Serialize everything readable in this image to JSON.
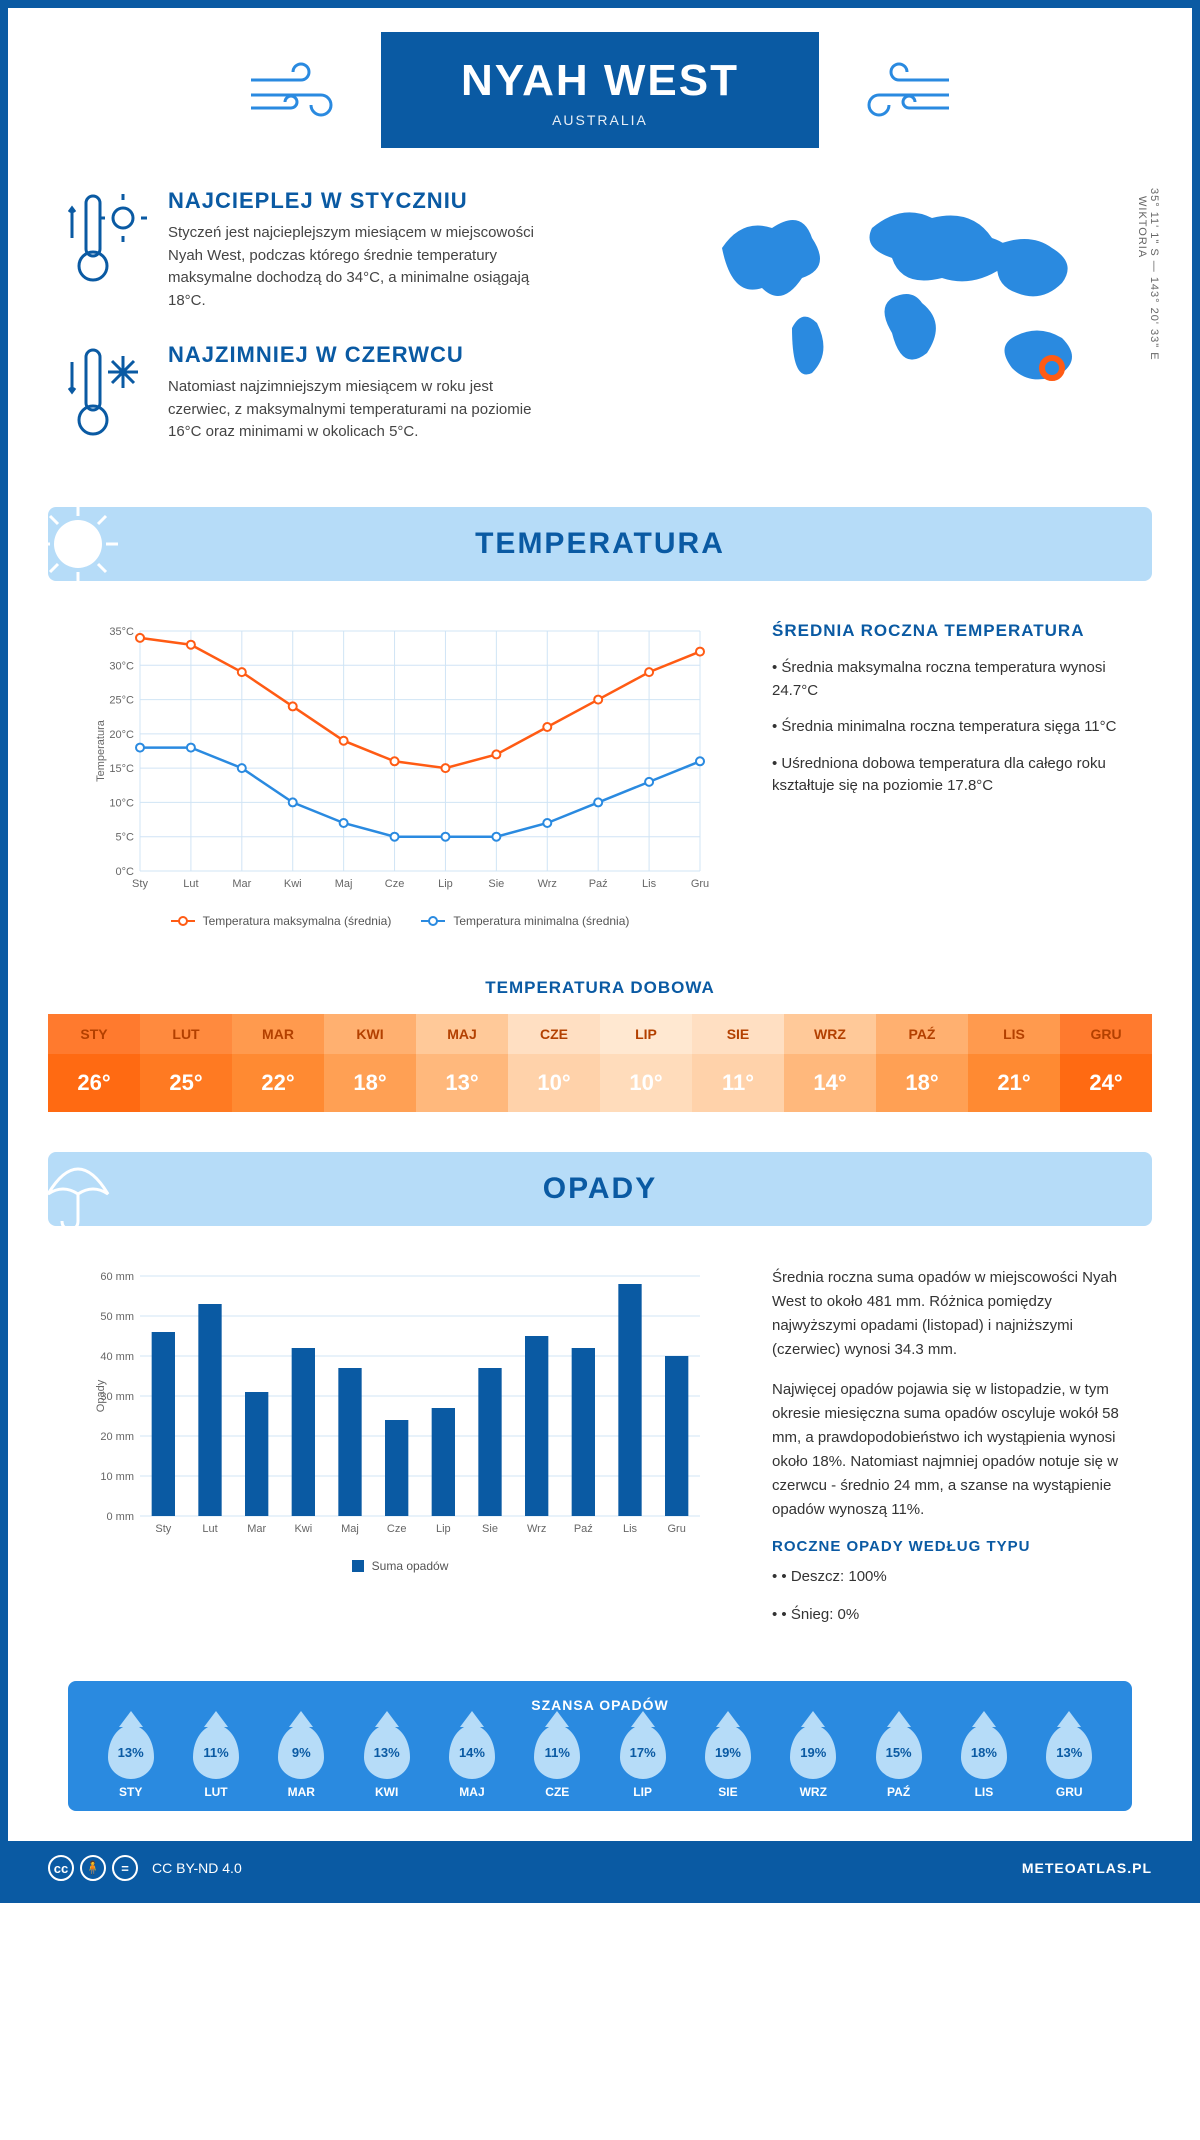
{
  "header": {
    "city": "NYAH WEST",
    "country": "AUSTRALIA"
  },
  "coords": {
    "lat": "35° 11' 1\" S",
    "lon": "143° 20' 33\" E",
    "region": "WIKTORIA"
  },
  "warmest": {
    "title": "NAJCIEPLEJ W STYCZNIU",
    "text": "Styczeń jest najcieplejszym miesiącem w miejscowości Nyah West, podczas którego średnie temperatury maksymalne dochodzą do 34°C, a minimalne osiągają 18°C."
  },
  "coldest": {
    "title": "NAJZIMNIEJ W CZERWCU",
    "text": "Natomiast najzimniejszym miesiącem w roku jest czerwiec, z maksymalnymi temperaturami na poziomie 16°C oraz minimami w okolicach 5°C."
  },
  "temp_section": {
    "title": "TEMPERATURA",
    "chart": {
      "type": "line",
      "months": [
        "Sty",
        "Lut",
        "Mar",
        "Kwi",
        "Maj",
        "Cze",
        "Lip",
        "Sie",
        "Wrz",
        "Paź",
        "Lis",
        "Gru"
      ],
      "max_values": [
        34,
        33,
        29,
        24,
        19,
        16,
        15,
        17,
        21,
        25,
        29,
        32
      ],
      "min_values": [
        18,
        18,
        15,
        10,
        7,
        5,
        5,
        5,
        7,
        10,
        13,
        16
      ],
      "max_color": "#ff5b14",
      "min_color": "#2a8ae0",
      "ylabel": "Temperatura",
      "ylim": [
        0,
        35
      ],
      "ytick_step": 5,
      "grid_color": "#d0e4f5",
      "background": "#ffffff",
      "legend_max": "Temperatura maksymalna (średnia)",
      "legend_min": "Temperatura minimalna (średnia)"
    },
    "avg_title": "ŚREDNIA ROCZNA TEMPERATURA",
    "bullets": [
      "Średnia maksymalna roczna temperatura wynosi 24.7°C",
      "Średnia minimalna roczna temperatura sięga 11°C",
      "Uśredniona dobowa temperatura dla całego roku kształtuje się na poziomie 17.8°C"
    ],
    "daily_title": "TEMPERATURA DOBOWA",
    "daily": {
      "months": [
        "STY",
        "LUT",
        "MAR",
        "KWI",
        "MAJ",
        "CZE",
        "LIP",
        "SIE",
        "WRZ",
        "PAŹ",
        "LIS",
        "GRU"
      ],
      "values": [
        "26°",
        "25°",
        "22°",
        "18°",
        "13°",
        "10°",
        "10°",
        "11°",
        "14°",
        "18°",
        "21°",
        "24°"
      ],
      "header_colors": [
        "#ff7a2e",
        "#ff8a3e",
        "#ff9a4e",
        "#ffb070",
        "#ffc999",
        "#ffdfc2",
        "#ffe8d1",
        "#ffdfc2",
        "#ffc999",
        "#ffb070",
        "#ff9a4e",
        "#ff7a2e"
      ],
      "value_bg": [
        "#ff6a12",
        "#ff7a22",
        "#ff8a32",
        "#ffa054",
        "#ffb87c",
        "#ffd2aa",
        "#ffdcbb",
        "#ffd2aa",
        "#ffb87c",
        "#ffa054",
        "#ff8a32",
        "#ff6a12"
      ],
      "header_text": [
        "#b34000",
        "#b34000",
        "#b34000",
        "#b34000",
        "#b34000",
        "#b34000",
        "#b34000",
        "#b34000",
        "#b34000",
        "#b34000",
        "#b34000",
        "#b34000"
      ]
    }
  },
  "rain_section": {
    "title": "OPADY",
    "chart": {
      "type": "bar",
      "months": [
        "Sty",
        "Lut",
        "Mar",
        "Kwi",
        "Maj",
        "Cze",
        "Lip",
        "Sie",
        "Wrz",
        "Paź",
        "Lis",
        "Gru"
      ],
      "values": [
        46,
        53,
        31,
        42,
        37,
        24,
        27,
        37,
        45,
        42,
        58,
        40
      ],
      "bar_color": "#0a5aa3",
      "ylabel": "Opady",
      "ylim": [
        0,
        60
      ],
      "ytick_step": 10,
      "legend": "Suma opadów",
      "grid_color": "#d0e4f5"
    },
    "para1": "Średnia roczna suma opadów w miejscowości Nyah West to około 481 mm. Różnica pomiędzy najwyższymi opadami (listopad) i najniższymi (czerwiec) wynosi 34.3 mm.",
    "para2": "Najwięcej opadów pojawia się w listopadzie, w tym okresie miesięczna suma opadów oscyluje wokół 58 mm, a prawdopodobieństwo ich wystąpienia wynosi około 18%. Natomiast najmniej opadów notuje się w czerwcu - średnio 24 mm, a szanse na wystąpienie opadów wynoszą 11%.",
    "chance_title": "SZANSA OPADÓW",
    "chance": {
      "months": [
        "STY",
        "LUT",
        "MAR",
        "KWI",
        "MAJ",
        "CZE",
        "LIP",
        "SIE",
        "WRZ",
        "PAŹ",
        "LIS",
        "GRU"
      ],
      "values": [
        "13%",
        "11%",
        "9%",
        "13%",
        "14%",
        "11%",
        "17%",
        "19%",
        "19%",
        "15%",
        "18%",
        "13%"
      ]
    },
    "type_title": "ROCZNE OPADY WEDŁUG TYPU",
    "types": [
      "Deszcz: 100%",
      "Śnieg: 0%"
    ]
  },
  "footer": {
    "license": "CC BY-ND 4.0",
    "site": "METEOATLAS.PL"
  }
}
